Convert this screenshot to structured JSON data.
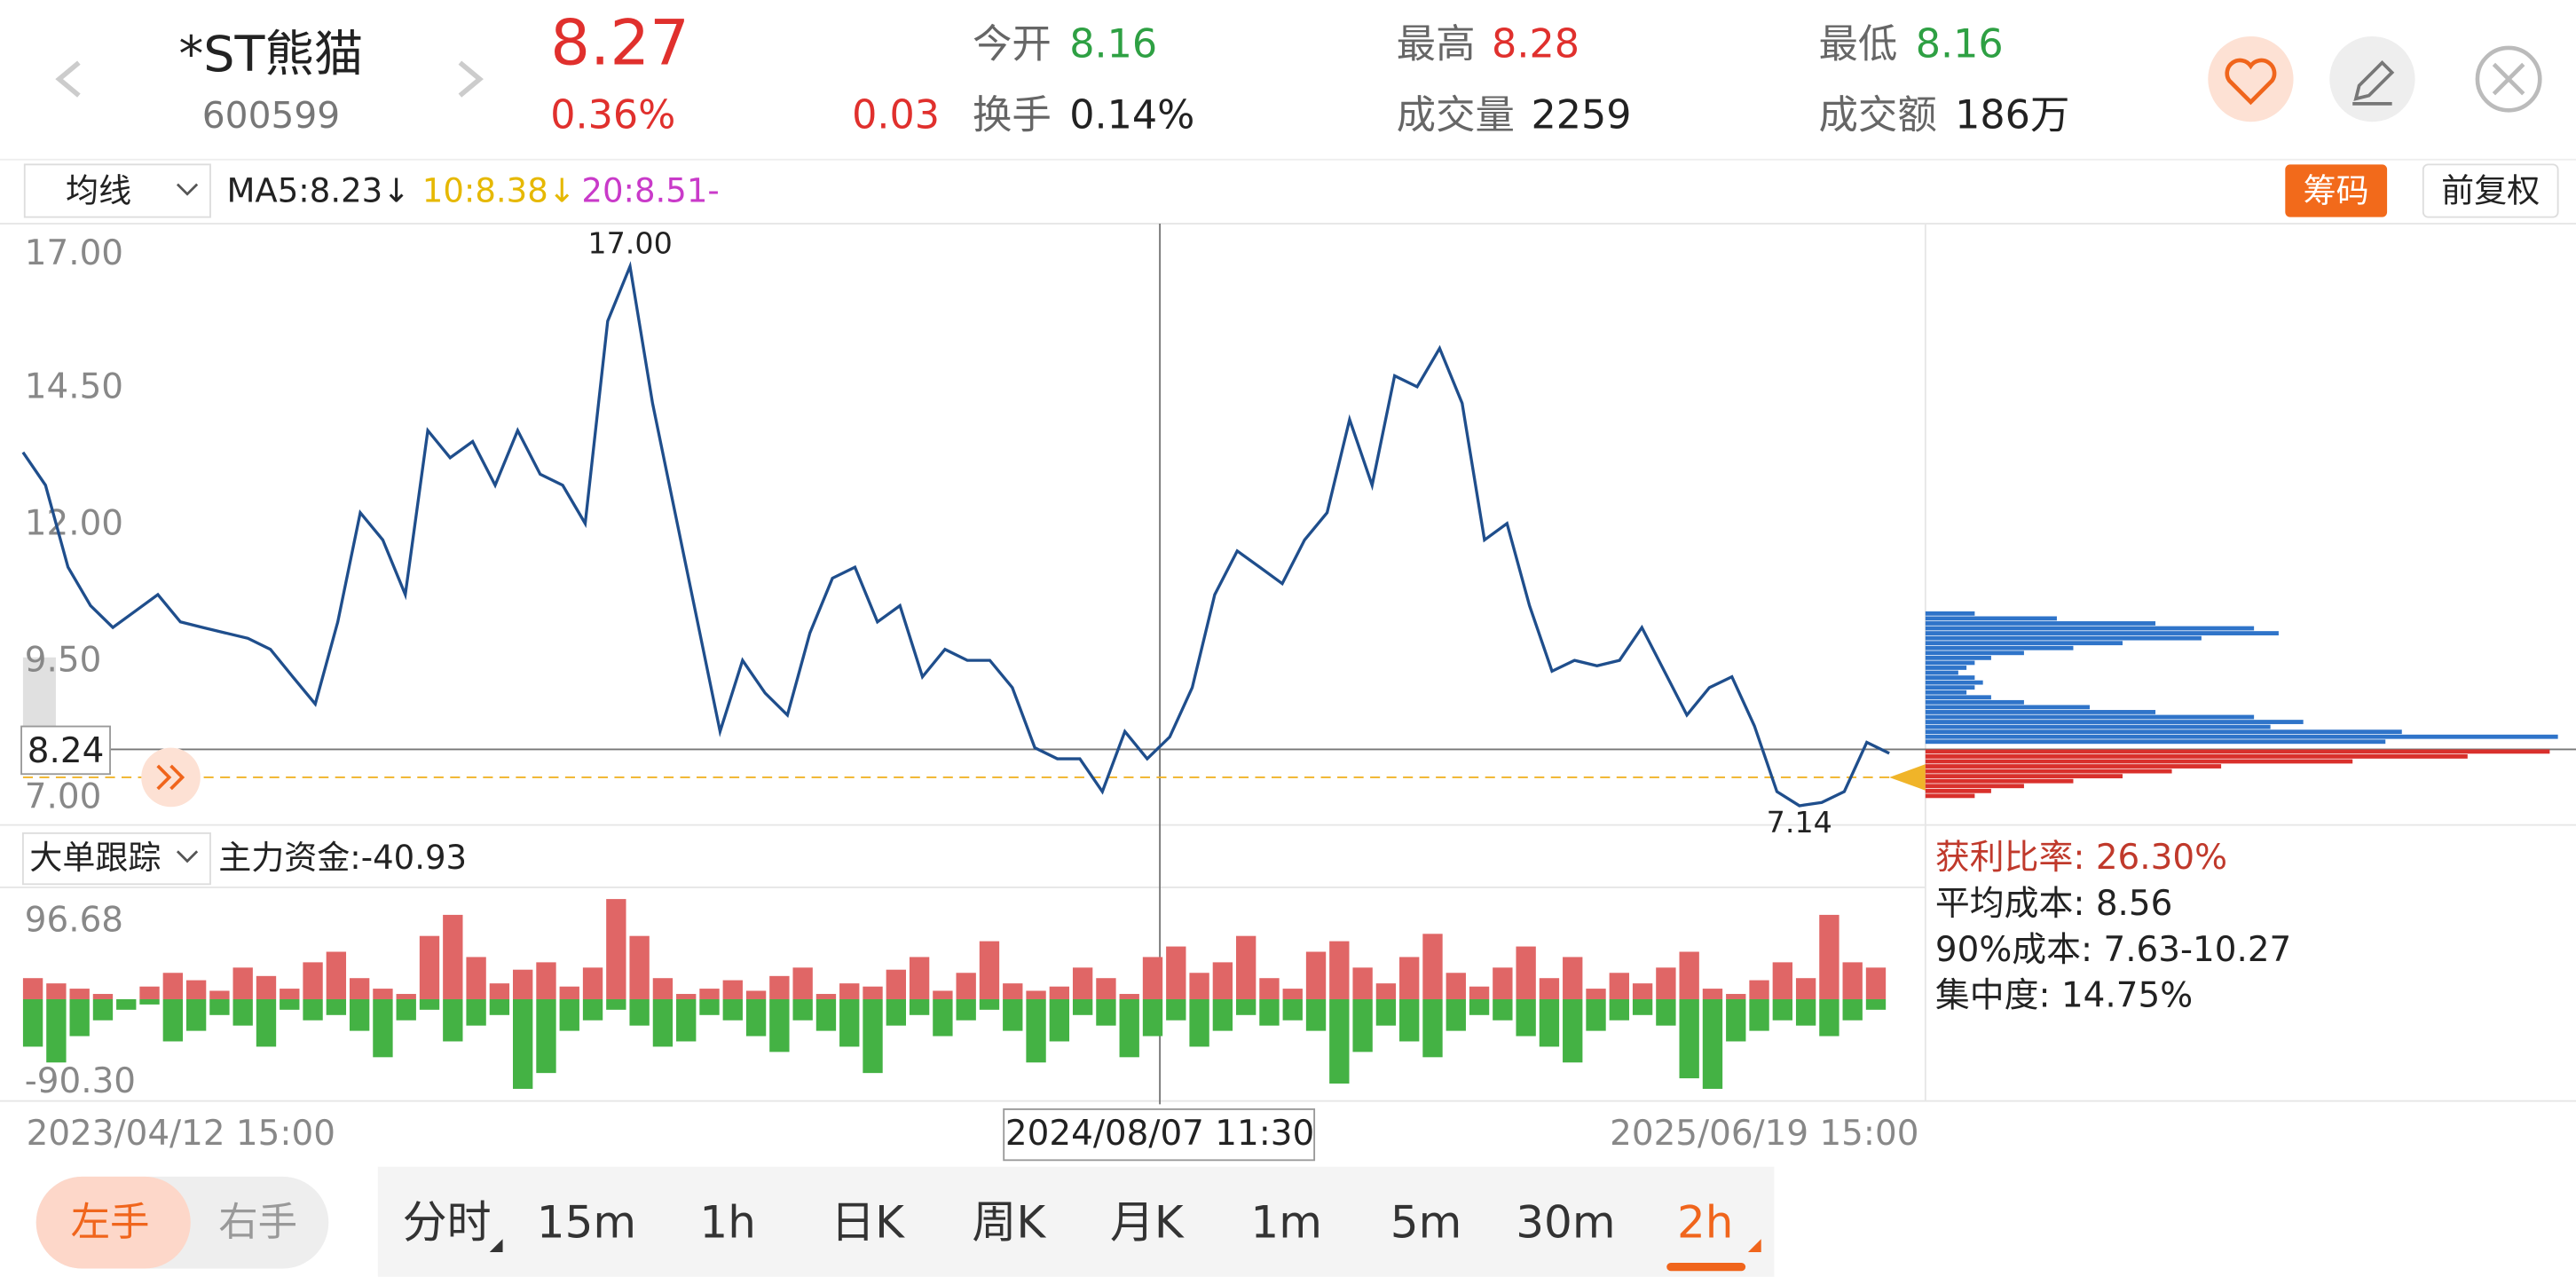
{
  "header": {
    "name": "*ST熊猫",
    "code": "600599",
    "price": "8.27",
    "change_pct": "0.36%",
    "change": "0.03",
    "stats": [
      {
        "label": "今开",
        "value": "8.16"
      },
      {
        "label": "换手",
        "value": "0.14%"
      },
      {
        "label": "最高",
        "value": "8.28"
      },
      {
        "label": "成交量",
        "value": "2259"
      },
      {
        "label": "最低",
        "value": "8.16"
      },
      {
        "label": "成交额",
        "value": "186万"
      }
    ]
  },
  "toolbar": {
    "indicator": "均线",
    "ma": [
      "MA5:8.23↓",
      "10:8.38↓",
      "20:8.51-"
    ],
    "chips": "筹码",
    "adjust": "前复权"
  },
  "price_chart": {
    "type": "line",
    "color": "#1f4e8c",
    "values": [
      13.6,
      13.0,
      11.5,
      10.8,
      10.4,
      10.7,
      11.0,
      10.5,
      10.4,
      10.3,
      10.2,
      10.0,
      9.5,
      9.0,
      10.5,
      12.5,
      12.0,
      11.0,
      14.0,
      13.5,
      13.8,
      13.0,
      14.0,
      13.2,
      13.0,
      12.3,
      16.0,
      17.0,
      14.5,
      12.5,
      10.5,
      8.5,
      9.8,
      9.2,
      8.8,
      10.3,
      11.3,
      11.5,
      10.5,
      10.8,
      9.5,
      10.0,
      9.8,
      9.8,
      9.3,
      8.2,
      8.0,
      8.0,
      7.4,
      8.5,
      8.0,
      8.4,
      9.3,
      11.0,
      11.8,
      11.5,
      11.2,
      12.0,
      12.5,
      14.2,
      13.0,
      15.0,
      14.8,
      15.5,
      14.5,
      12.0,
      12.3,
      10.8,
      9.6,
      9.8,
      9.7,
      9.8,
      10.4,
      9.6,
      8.8,
      9.3,
      9.5,
      8.6,
      7.4,
      7.14,
      7.2,
      7.4,
      8.3,
      8.1
    ],
    "ylim": [
      7,
      17
    ],
    "yticks": [
      {
        "value": 17,
        "label": "17.00"
      },
      {
        "value": 14.5,
        "label": "14.50"
      },
      {
        "value": 12,
        "label": "12.00"
      },
      {
        "value": 9.5,
        "label": "9.50"
      },
      {
        "value": 7,
        "label": "7.00"
      }
    ],
    "crosshair_value": "8.24",
    "max_label": "17.00",
    "min_label": "7.14",
    "xlabels": [
      "2023/04/12 15:00",
      "2024/08/07 11:30",
      "2025/06/19 15:00"
    ]
  },
  "flow_chart": {
    "type": "bar",
    "title": "大单跟踪",
    "summary": "主力资金:-40.93",
    "ylim": [
      -90.3,
      96.68
    ],
    "yticks": [
      96.68,
      {
        "value": -90.3,
        "label": "-90.30"
      }
    ],
    "series": [
      {
        "color": "#e06666",
        "values": [
          20,
          15,
          10,
          5,
          0,
          12,
          25,
          18,
          8,
          30,
          22,
          10,
          35,
          45,
          20,
          10,
          5,
          60,
          80,
          40,
          15,
          28,
          35,
          12,
          30,
          95,
          60,
          20,
          5,
          10,
          18,
          8,
          22,
          30,
          5,
          15,
          12,
          28,
          40,
          8,
          25,
          55,
          15,
          8,
          12,
          30,
          20,
          5,
          40,
          50,
          25,
          35,
          60,
          20,
          10,
          45,
          55,
          30,
          15,
          40,
          62,
          25,
          12,
          30,
          50,
          20,
          40,
          10,
          25,
          15,
          30,
          45,
          10,
          5,
          18,
          35,
          20,
          80,
          35,
          30
        ]
      },
      {
        "color": "#44b244",
        "values": [
          -45,
          -60,
          -35,
          -20,
          -10,
          -5,
          -40,
          -30,
          -15,
          -25,
          -45,
          -10,
          -20,
          -15,
          -30,
          -55,
          -20,
          -10,
          -40,
          -25,
          -15,
          -85,
          -70,
          -30,
          -20,
          -10,
          -25,
          -45,
          -40,
          -15,
          -20,
          -35,
          -50,
          -20,
          -30,
          -45,
          -70,
          -25,
          -15,
          -35,
          -20,
          -10,
          -30,
          -60,
          -40,
          -15,
          -25,
          -55,
          -35,
          -20,
          -45,
          -30,
          -15,
          -25,
          -20,
          -30,
          -80,
          -50,
          -25,
          -40,
          -55,
          -30,
          -15,
          -20,
          -35,
          -45,
          -60,
          -30,
          -20,
          -15,
          -25,
          -75,
          -85,
          -40,
          -30,
          -20,
          -25,
          -35,
          -20,
          -10
        ]
      }
    ]
  },
  "chips": {
    "series": [
      {
        "color": "#2f74c9",
        "values": [
          30,
          80,
          140,
          200,
          215,
          168,
          120,
          90,
          60,
          40,
          30,
          25,
          20,
          30,
          35,
          30,
          25,
          40,
          60,
          100,
          140,
          200,
          230,
          210,
          290,
          385,
          280
        ]
      },
      {
        "color": "#d9302c",
        "values": [
          380,
          330,
          260,
          180,
          150,
          120,
          90,
          60,
          40,
          30
        ]
      }
    ],
    "stats": [
      "获利比率: 26.30%",
      "平均成本: 8.56",
      "90%成本: 7.63-10.27",
      "集中度: 14.75%"
    ]
  },
  "controls": {
    "hand": [
      "左手",
      "右手"
    ],
    "periods": [
      "分时",
      "15m",
      "1h",
      "日K",
      "周K",
      "月K",
      "1m",
      "5m",
      "30m",
      "2h"
    ]
  }
}
